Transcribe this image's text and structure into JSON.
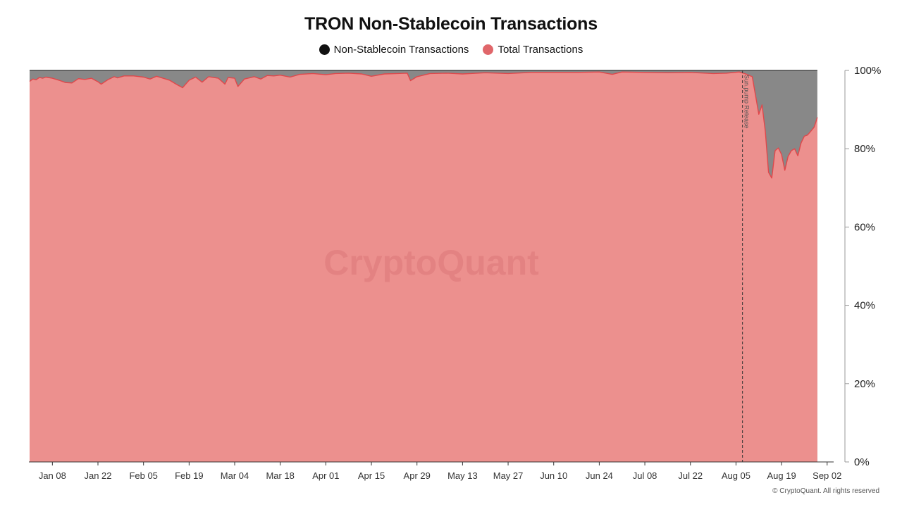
{
  "title": "TRON Non-Stablecoin Transactions",
  "legend": [
    {
      "label": "Non-Stablecoin Transactions",
      "color": "#111111"
    },
    {
      "label": "Total Transactions",
      "color": "#e0666a"
    }
  ],
  "watermark": "CryptoQuant",
  "copyright": "© CryptoQuant. All rights reserved",
  "colors": {
    "area_total": "#ec908e",
    "area_nonstable": "#888888",
    "line_total": "#e0484b",
    "axis": "#333333"
  },
  "chart_data": {
    "type": "area",
    "title": "TRON Non-Stablecoin Transactions",
    "x_axis": {
      "start_date": "2024-01-01",
      "end_date": "2024-09-04",
      "tick_labels": [
        "Jan 08",
        "Jan 22",
        "Feb 05",
        "Feb 19",
        "Mar 04",
        "Mar 18",
        "Apr 01",
        "Apr 15",
        "Apr 29",
        "May 13",
        "May 27",
        "Jun 10",
        "Jun 24",
        "Jul 08",
        "Jul 22",
        "Aug 05",
        "Aug 19",
        "Sep 02"
      ],
      "tick_dates": [
        "2024-01-08",
        "2024-01-22",
        "2024-02-05",
        "2024-02-19",
        "2024-03-04",
        "2024-03-18",
        "2024-04-01",
        "2024-04-15",
        "2024-04-29",
        "2024-05-13",
        "2024-05-27",
        "2024-06-10",
        "2024-06-24",
        "2024-07-08",
        "2024-07-22",
        "2024-08-05",
        "2024-08-19",
        "2024-09-02"
      ]
    },
    "y_axis": {
      "position": "right",
      "ylim": [
        0,
        100
      ],
      "ticks": [
        0,
        20,
        40,
        60,
        80,
        100
      ],
      "tick_labels": [
        "0%",
        "20%",
        "40%",
        "60%",
        "80%",
        "100%"
      ]
    },
    "annotation": {
      "label": "Sun.pump Release",
      "date": "2024-08-07",
      "style": "dashed vertical line"
    },
    "series": [
      {
        "name": "Total Transactions",
        "note": "share of transactions that are stablecoin (red area, % of total)",
        "points": [
          [
            "2024-01-01",
            97.2
          ],
          [
            "2024-01-02",
            97.8
          ],
          [
            "2024-01-03",
            97.6
          ],
          [
            "2024-01-04",
            98.2
          ],
          [
            "2024-01-05",
            98.0
          ],
          [
            "2024-01-06",
            98.3
          ],
          [
            "2024-01-08",
            98.0
          ],
          [
            "2024-01-10",
            97.5
          ],
          [
            "2024-01-12",
            96.9
          ],
          [
            "2024-01-14",
            96.8
          ],
          [
            "2024-01-16",
            97.9
          ],
          [
            "2024-01-18",
            97.7
          ],
          [
            "2024-01-20",
            98.0
          ],
          [
            "2024-01-22",
            97.1
          ],
          [
            "2024-01-23",
            96.5
          ],
          [
            "2024-01-25",
            97.6
          ],
          [
            "2024-01-27",
            98.4
          ],
          [
            "2024-01-28",
            98.1
          ],
          [
            "2024-01-30",
            98.6
          ],
          [
            "2024-02-02",
            98.6
          ],
          [
            "2024-02-05",
            98.3
          ],
          [
            "2024-02-07",
            97.8
          ],
          [
            "2024-02-09",
            98.5
          ],
          [
            "2024-02-11",
            98.0
          ],
          [
            "2024-02-13",
            97.5
          ],
          [
            "2024-02-15",
            96.5
          ],
          [
            "2024-02-17",
            95.6
          ],
          [
            "2024-02-19",
            97.5
          ],
          [
            "2024-02-21",
            98.3
          ],
          [
            "2024-02-23",
            97.0
          ],
          [
            "2024-02-25",
            98.4
          ],
          [
            "2024-02-28",
            98.0
          ],
          [
            "2024-03-01",
            96.5
          ],
          [
            "2024-03-02",
            98.2
          ],
          [
            "2024-03-04",
            98.0
          ],
          [
            "2024-03-05",
            95.9
          ],
          [
            "2024-03-07",
            97.8
          ],
          [
            "2024-03-10",
            98.4
          ],
          [
            "2024-03-12",
            97.8
          ],
          [
            "2024-03-14",
            98.7
          ],
          [
            "2024-03-16",
            98.6
          ],
          [
            "2024-03-18",
            98.8
          ],
          [
            "2024-03-21",
            98.3
          ],
          [
            "2024-03-24",
            99.0
          ],
          [
            "2024-03-28",
            99.2
          ],
          [
            "2024-04-01",
            98.9
          ],
          [
            "2024-04-04",
            99.2
          ],
          [
            "2024-04-08",
            99.3
          ],
          [
            "2024-04-12",
            99.1
          ],
          [
            "2024-04-15",
            98.5
          ],
          [
            "2024-04-19",
            99.1
          ],
          [
            "2024-04-23",
            99.2
          ],
          [
            "2024-04-26",
            99.3
          ],
          [
            "2024-04-27",
            97.4
          ],
          [
            "2024-04-29",
            98.4
          ],
          [
            "2024-05-03",
            99.2
          ],
          [
            "2024-05-08",
            99.3
          ],
          [
            "2024-05-13",
            99.1
          ],
          [
            "2024-05-20",
            99.4
          ],
          [
            "2024-05-27",
            99.2
          ],
          [
            "2024-06-03",
            99.5
          ],
          [
            "2024-06-10",
            99.5
          ],
          [
            "2024-06-17",
            99.5
          ],
          [
            "2024-06-24",
            99.6
          ],
          [
            "2024-06-28",
            99.0
          ],
          [
            "2024-07-01",
            99.6
          ],
          [
            "2024-07-08",
            99.5
          ],
          [
            "2024-07-15",
            99.4
          ],
          [
            "2024-07-22",
            99.5
          ],
          [
            "2024-07-29",
            99.2
          ],
          [
            "2024-08-02",
            99.3
          ],
          [
            "2024-08-06",
            99.6
          ],
          [
            "2024-08-08",
            99.1
          ],
          [
            "2024-08-10",
            98.4
          ],
          [
            "2024-08-12",
            88.8
          ],
          [
            "2024-08-13",
            91.2
          ],
          [
            "2024-08-14",
            84.5
          ],
          [
            "2024-08-15",
            74.0
          ],
          [
            "2024-08-16",
            72.5
          ],
          [
            "2024-08-17",
            79.5
          ],
          [
            "2024-08-18",
            80.2
          ],
          [
            "2024-08-19",
            78.5
          ],
          [
            "2024-08-20",
            74.5
          ],
          [
            "2024-08-21",
            78.0
          ],
          [
            "2024-08-22",
            79.5
          ],
          [
            "2024-08-23",
            80.0
          ],
          [
            "2024-08-24",
            78.2
          ],
          [
            "2024-08-25",
            81.5
          ],
          [
            "2024-08-26",
            83.2
          ],
          [
            "2024-08-27",
            83.5
          ],
          [
            "2024-08-28",
            84.5
          ],
          [
            "2024-08-29",
            85.5
          ],
          [
            "2024-08-30",
            88.0
          ]
        ]
      },
      {
        "name": "Non-Stablecoin Transactions",
        "note": "remainder up to 100% (grey area)"
      }
    ]
  }
}
